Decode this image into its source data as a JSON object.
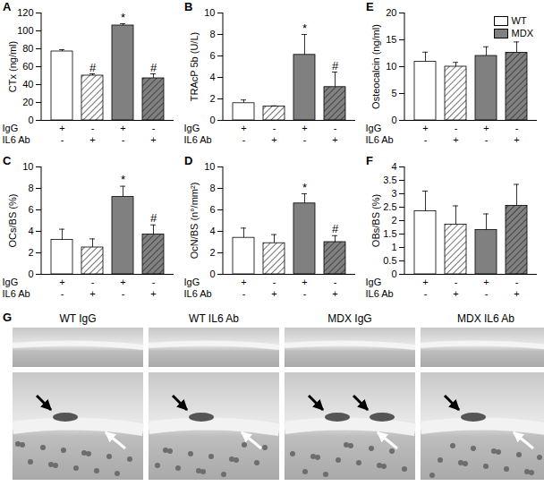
{
  "chart_data": [
    {
      "type": "bar",
      "panel": "A",
      "y_label": "CTx (ng/ml)",
      "categories": [
        null,
        null,
        null,
        null
      ],
      "values": [
        77,
        50,
        106,
        47
      ],
      "errors": [
        2,
        2,
        2,
        5
      ],
      "colors": [
        "#ffffff",
        "#ffffff",
        "#808080",
        "#808080"
      ],
      "annotations": [
        null,
        "#",
        "*",
        "#"
      ],
      "treatments": [
        {
          "label": "IgG",
          "marks": [
            "+",
            "-",
            "+",
            "-"
          ]
        },
        {
          "label": "IL6 Ab",
          "marks": [
            "-",
            "+",
            "-",
            "+"
          ]
        }
      ],
      "ylim": [
        0,
        120
      ],
      "yticks": [
        0,
        20,
        40,
        60,
        80,
        100,
        120
      ]
    },
    {
      "type": "bar",
      "panel": "B",
      "y_label": "TRAcP 5b (U/L)",
      "categories": [
        null,
        null,
        null,
        null
      ],
      "values": [
        1.6,
        1.3,
        6.1,
        3.1
      ],
      "errors": [
        0.3,
        0.05,
        1.9,
        1.4
      ],
      "colors": [
        "#ffffff",
        "#ffffff",
        "#808080",
        "#808080"
      ],
      "annotations": [
        null,
        null,
        "*",
        "#"
      ],
      "treatments": [
        {
          "label": "IgG",
          "marks": [
            "+",
            "-",
            "+",
            "-"
          ]
        },
        {
          "label": "IL6 Ab",
          "marks": [
            "-",
            "+",
            "-",
            "+"
          ]
        }
      ],
      "ylim": [
        0,
        10
      ],
      "yticks": [
        0,
        2,
        4,
        6,
        8,
        10
      ]
    },
    {
      "type": "bar",
      "panel": "C",
      "y_label": "OCs/BS (%)",
      "categories": [
        null,
        null,
        null,
        null
      ],
      "values": [
        3.2,
        2.5,
        7.2,
        3.7
      ],
      "errors": [
        1.0,
        0.8,
        1.0,
        0.9
      ],
      "colors": [
        "#ffffff",
        "#ffffff",
        "#808080",
        "#808080"
      ],
      "annotations": [
        null,
        null,
        "*",
        "#"
      ],
      "treatments": [
        {
          "label": "IgG",
          "marks": [
            "+",
            "-",
            "+",
            "-"
          ]
        },
        {
          "label": "IL6 Ab",
          "marks": [
            "-",
            "+",
            "-",
            "+"
          ]
        }
      ],
      "ylim": [
        0,
        10
      ],
      "yticks": [
        0,
        2,
        4,
        6,
        8,
        10
      ]
    },
    {
      "type": "bar",
      "panel": "D",
      "y_label": "OcN/BS (n°/mm²)",
      "categories": [
        null,
        null,
        null,
        null
      ],
      "values": [
        3.4,
        2.9,
        6.6,
        3.0
      ],
      "errors": [
        0.9,
        0.8,
        0.9,
        0.6
      ],
      "colors": [
        "#ffffff",
        "#ffffff",
        "#808080",
        "#808080"
      ],
      "annotations": [
        null,
        null,
        "*",
        "#"
      ],
      "treatments": [
        {
          "label": "IgG",
          "marks": [
            "+",
            "-",
            "+",
            "-"
          ]
        },
        {
          "label": "IL6 Ab",
          "marks": [
            "-",
            "+",
            "-",
            "+"
          ]
        }
      ],
      "ylim": [
        0,
        10
      ],
      "yticks": [
        0,
        2,
        4,
        6,
        8,
        10
      ]
    },
    {
      "type": "bar",
      "panel": "E",
      "y_label": "Osteocalcin (ng/ml)",
      "categories": [
        null,
        null,
        null,
        null
      ],
      "values": [
        10.9,
        10.0,
        12.0,
        12.6
      ],
      "errors": [
        1.8,
        0.8,
        1.7,
        2.0
      ],
      "colors": [
        "#ffffff",
        "#ffffff",
        "#808080",
        "#808080"
      ],
      "annotations": [
        null,
        null,
        null,
        null
      ],
      "treatments": [
        {
          "label": "IgG",
          "marks": [
            "+",
            "-",
            "+",
            "-"
          ]
        },
        {
          "label": "IL6 Ab",
          "marks": [
            "-",
            "+",
            "-",
            "+"
          ]
        }
      ],
      "ylim": [
        0,
        20
      ],
      "yticks": [
        0,
        5,
        10,
        15,
        20
      ],
      "legend": "top-right",
      "legend_labels": [
        {
          "name": "WT",
          "color": "#ffffff"
        },
        {
          "name": "MDX",
          "color": "#808080"
        }
      ]
    },
    {
      "type": "bar",
      "panel": "F",
      "y_label": "OBs/BS (%)",
      "categories": [
        null,
        null,
        null,
        null
      ],
      "values": [
        2.35,
        1.85,
        1.65,
        2.55
      ],
      "errors": [
        0.75,
        0.7,
        0.6,
        0.8
      ],
      "colors": [
        "#ffffff",
        "#ffffff",
        "#808080",
        "#808080"
      ],
      "annotations": [
        null,
        null,
        null,
        null
      ],
      "treatments": [
        {
          "label": "IgG",
          "marks": [
            "+",
            "-",
            "+",
            "-"
          ]
        },
        {
          "label": "IL6 Ab",
          "marks": [
            "-",
            "+",
            "-",
            "+"
          ]
        }
      ],
      "ylim": [
        0,
        4
      ],
      "yticks": [
        0,
        0.5,
        1,
        1.5,
        2,
        2.5,
        3,
        3.5,
        4
      ]
    }
  ],
  "image_panel": {
    "panel": "G",
    "labels": [
      "WT IgG",
      "WT IL6 Ab",
      "MDX IgG",
      "MDX IL6 Ab"
    ]
  }
}
